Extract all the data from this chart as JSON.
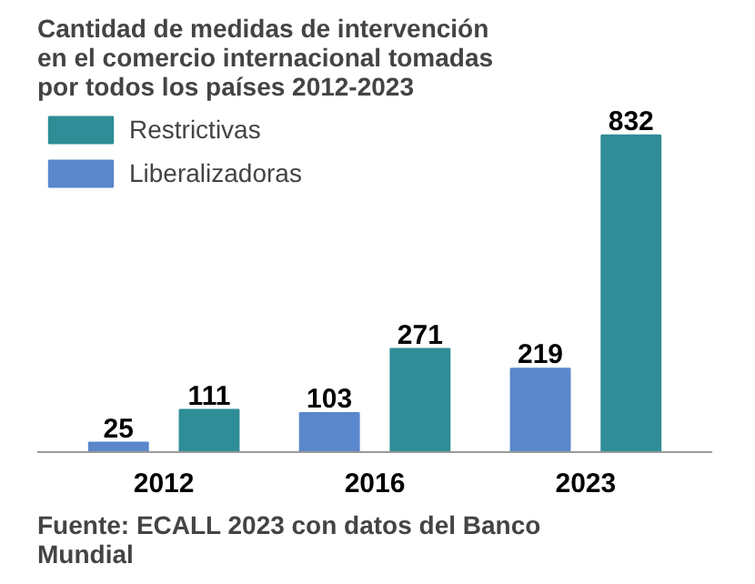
{
  "chart_data": {
    "type": "bar",
    "title": "Cantidad de medidas de intervención en el comercio internacional tomadas por todos los países 2012-2023",
    "categories": [
      "2012",
      "2016",
      "2023"
    ],
    "series": [
      {
        "name": "Liberalizadoras",
        "color": "#5b87cc",
        "values": [
          25,
          103,
          219
        ]
      },
      {
        "name": "Restrictivas",
        "color": "#2f8d97",
        "values": [
          111,
          271,
          832
        ]
      }
    ],
    "data_labels": true,
    "legend": "top left",
    "grid": false,
    "annotations": [
      "Fuente: ECALL 2023 con datos del Banco Mundial"
    ]
  }
}
